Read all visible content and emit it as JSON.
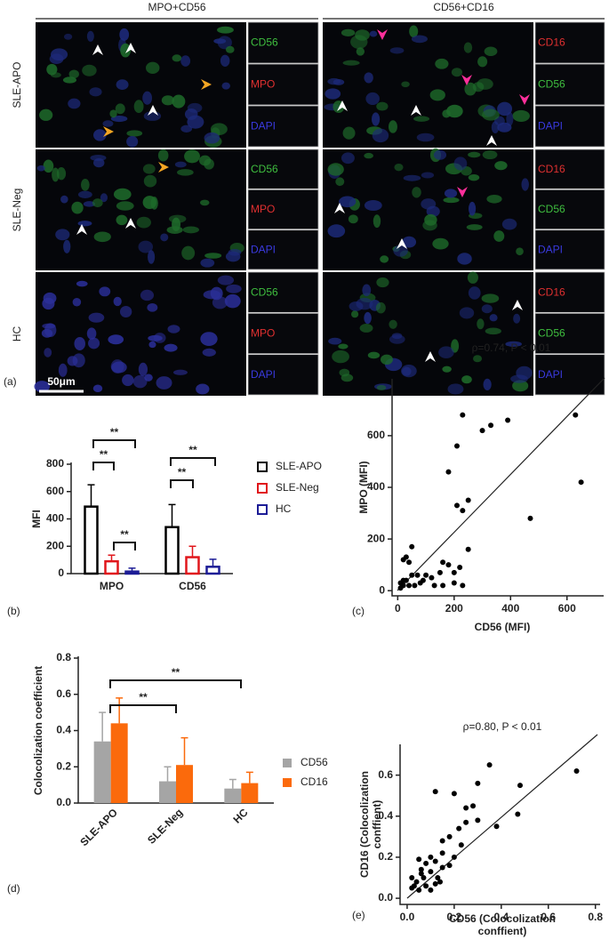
{
  "figure": {
    "panel_label": "(a)",
    "column_titles": [
      "MPO+CD56",
      "CD56+CD16"
    ],
    "row_labels": [
      "SLE-APO",
      "SLE-Neg",
      "HC"
    ],
    "scale_bar": "50μm",
    "channels": [
      [
        [
          "CD56",
          "MPO",
          "DAPI"
        ],
        [
          "CD16",
          "CD56",
          "DAPI"
        ]
      ],
      [
        [
          "CD56",
          "MPO",
          "DAPI"
        ],
        [
          "CD16",
          "CD56",
          "DAPI"
        ]
      ],
      [
        [
          "CD56",
          "MPO",
          "DAPI"
        ],
        [
          "CD16",
          "CD56",
          "DAPI"
        ]
      ]
    ]
  },
  "chart_data": [
    {
      "type": "bar",
      "panel_label": "(b)",
      "ylabel": "MFI",
      "categories": [
        "MPO",
        "CD56"
      ],
      "series": [
        {
          "name": "SLE-APO",
          "color": "#000000",
          "values": [
            490,
            340
          ],
          "errors": [
            160,
            165
          ]
        },
        {
          "name": "SLE-Neg",
          "color": "#e0161b",
          "values": [
            90,
            120
          ],
          "errors": [
            45,
            80
          ]
        },
        {
          "name": "HC",
          "color": "#1c1c96",
          "values": [
            15,
            50
          ],
          "errors": [
            25,
            55
          ]
        }
      ],
      "bar_style": "outline",
      "ylim": [
        0,
        800
      ],
      "yticks": [
        0,
        200,
        400,
        600,
        800
      ],
      "legend": "right",
      "annotations": [
        "**",
        "**",
        "**",
        "**",
        "**"
      ]
    },
    {
      "type": "scatter",
      "panel_label": "(c)",
      "title": "ρ=0.74, P < 0.01",
      "xlabel": [
        "CD56 (MFI)"
      ],
      "ylabel": [
        "MPO (MFI)"
      ],
      "x": [
        230,
        300,
        330,
        390,
        630,
        650,
        210,
        180,
        210,
        230,
        250,
        470,
        250,
        220,
        200,
        180,
        160,
        150,
        120,
        90,
        70,
        50,
        30,
        40,
        20,
        20,
        10,
        20,
        40,
        60,
        80,
        100,
        130,
        160,
        200,
        230,
        10,
        30,
        50
      ],
      "y": [
        680,
        620,
        640,
        660,
        680,
        420,
        560,
        460,
        330,
        310,
        350,
        280,
        160,
        90,
        70,
        100,
        110,
        70,
        50,
        40,
        60,
        170,
        130,
        110,
        120,
        40,
        30,
        20,
        20,
        20,
        30,
        60,
        20,
        20,
        30,
        20,
        10,
        40,
        60
      ],
      "color": "#000000",
      "xlim": [
        -20,
        730
      ],
      "ylim": [
        -20,
        820
      ],
      "xticks": [
        0,
        200,
        400,
        600
      ],
      "yticks": [
        0,
        200,
        400,
        600
      ]
    },
    {
      "type": "bar",
      "panel_label": "(d)",
      "ylabel": "Colocolization coefficient",
      "categories": [
        "SLE-APO",
        "SLE-Neg",
        "HC"
      ],
      "series": [
        {
          "name": "CD56",
          "color": "#a5a5a5",
          "values": [
            0.34,
            0.12,
            0.08
          ],
          "errors": [
            0.16,
            0.08,
            0.05
          ]
        },
        {
          "name": "CD16",
          "color": "#fb6a0c",
          "values": [
            0.44,
            0.21,
            0.11
          ],
          "errors": [
            0.14,
            0.15,
            0.06
          ]
        }
      ],
      "bar_style": "filled",
      "ylim": [
        0,
        0.8
      ],
      "yticks": [
        {
          "value": 0,
          "label": "0.0"
        },
        0.2,
        0.4,
        0.6,
        0.8
      ],
      "legend": "right",
      "annotations": [
        "**",
        "**"
      ]
    },
    {
      "type": "scatter",
      "panel_label": "(e)",
      "title": "ρ=0.80, P < 0.01",
      "xlabel": [
        "CD56 (Colocolization",
        "conffient)"
      ],
      "ylabel": [
        "CD16 (Colocolization",
        "conffient)"
      ],
      "x": [
        0.72,
        0.48,
        0.47,
        0.38,
        0.35,
        0.3,
        0.28,
        0.25,
        0.25,
        0.2,
        0.12,
        0.22,
        0.3,
        0.15,
        0.18,
        0.15,
        0.2,
        0.23,
        0.18,
        0.12,
        0.1,
        0.08,
        0.05,
        0.06,
        0.1,
        0.07,
        0.13,
        0.15,
        0.04,
        0.08,
        0.02,
        0.05,
        0.1,
        0.12,
        0.02,
        0.06,
        0.14,
        0.03
      ],
      "y": [
        0.62,
        0.55,
        0.41,
        0.35,
        0.65,
        0.56,
        0.45,
        0.44,
        0.37,
        0.51,
        0.52,
        0.34,
        0.38,
        0.28,
        0.3,
        0.22,
        0.2,
        0.26,
        0.16,
        0.18,
        0.2,
        0.17,
        0.19,
        0.14,
        0.13,
        0.1,
        0.1,
        0.15,
        0.08,
        0.06,
        0.05,
        0.04,
        0.04,
        0.07,
        0.1,
        0.12,
        0.08,
        0.06
      ],
      "color": "#000000",
      "xlim": [
        -0.03,
        0.82
      ],
      "ylim": [
        -0.03,
        0.75
      ],
      "xticks": [
        {
          "value": 0,
          "label": "0.0"
        },
        0.2,
        0.4,
        0.6,
        0.8
      ],
      "yticks": [
        {
          "value": 0,
          "label": "0.0"
        },
        0.2,
        0.4,
        0.6
      ]
    }
  ]
}
